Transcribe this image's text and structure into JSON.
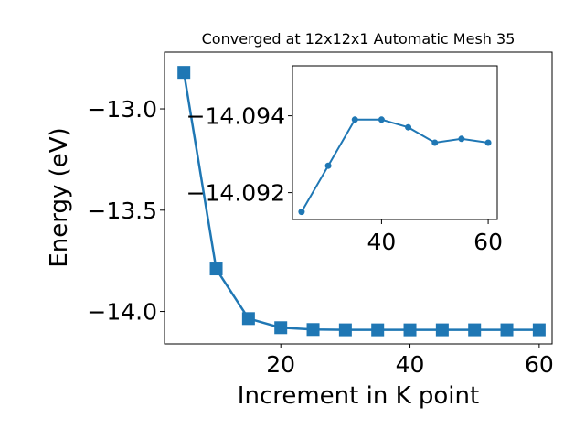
{
  "chart_data": [
    {
      "type": "line",
      "title": "Converged at 12x12x1 Automatic Mesh 35",
      "xlabel": "Increment in K point",
      "ylabel": "Energy (eV)",
      "xlim": [
        2,
        62
      ],
      "ylim": [
        -14.16,
        -12.72
      ],
      "grid": false,
      "marker": "square",
      "color": "#1f77b4",
      "x": [
        5,
        10,
        15,
        20,
        25,
        30,
        35,
        40,
        45,
        50,
        55,
        60
      ],
      "series": [
        {
          "values": [
            -12.82,
            -13.79,
            -14.035,
            -14.08,
            -14.089,
            -14.0905,
            -14.0906,
            -14.0906,
            -14.0905,
            -14.0904,
            -14.0904,
            -14.0904
          ]
        }
      ],
      "xticks": [
        20,
        40,
        60
      ],
      "xtick_labels": [
        "20",
        "40",
        "60"
      ],
      "yticks": [
        -13.0,
        -13.5,
        -14.0
      ],
      "ytick_labels": [
        "−13.0",
        "−13.5",
        "−14.0"
      ]
    },
    {
      "type": "line",
      "title": "",
      "xlabel": "",
      "ylabel": "",
      "xlim": [
        23.3,
        61.7
      ],
      "ylim": [
        -14.0913,
        -14.0953
      ],
      "grid": false,
      "marker": "circle",
      "color": "#1f77b4",
      "inset": true,
      "x": [
        25,
        30,
        35,
        40,
        45,
        50,
        55,
        60
      ],
      "series": [
        {
          "values": [
            -14.0915,
            -14.0927,
            -14.0939,
            -14.0939,
            -14.0937,
            -14.0933,
            -14.0934,
            -14.0933
          ]
        }
      ],
      "xticks": [
        40,
        60
      ],
      "xtick_labels": [
        "40",
        "60"
      ],
      "yticks": [
        -14.094,
        -14.092
      ],
      "ytick_labels": [
        "−14.094",
        "−14.092"
      ]
    }
  ]
}
